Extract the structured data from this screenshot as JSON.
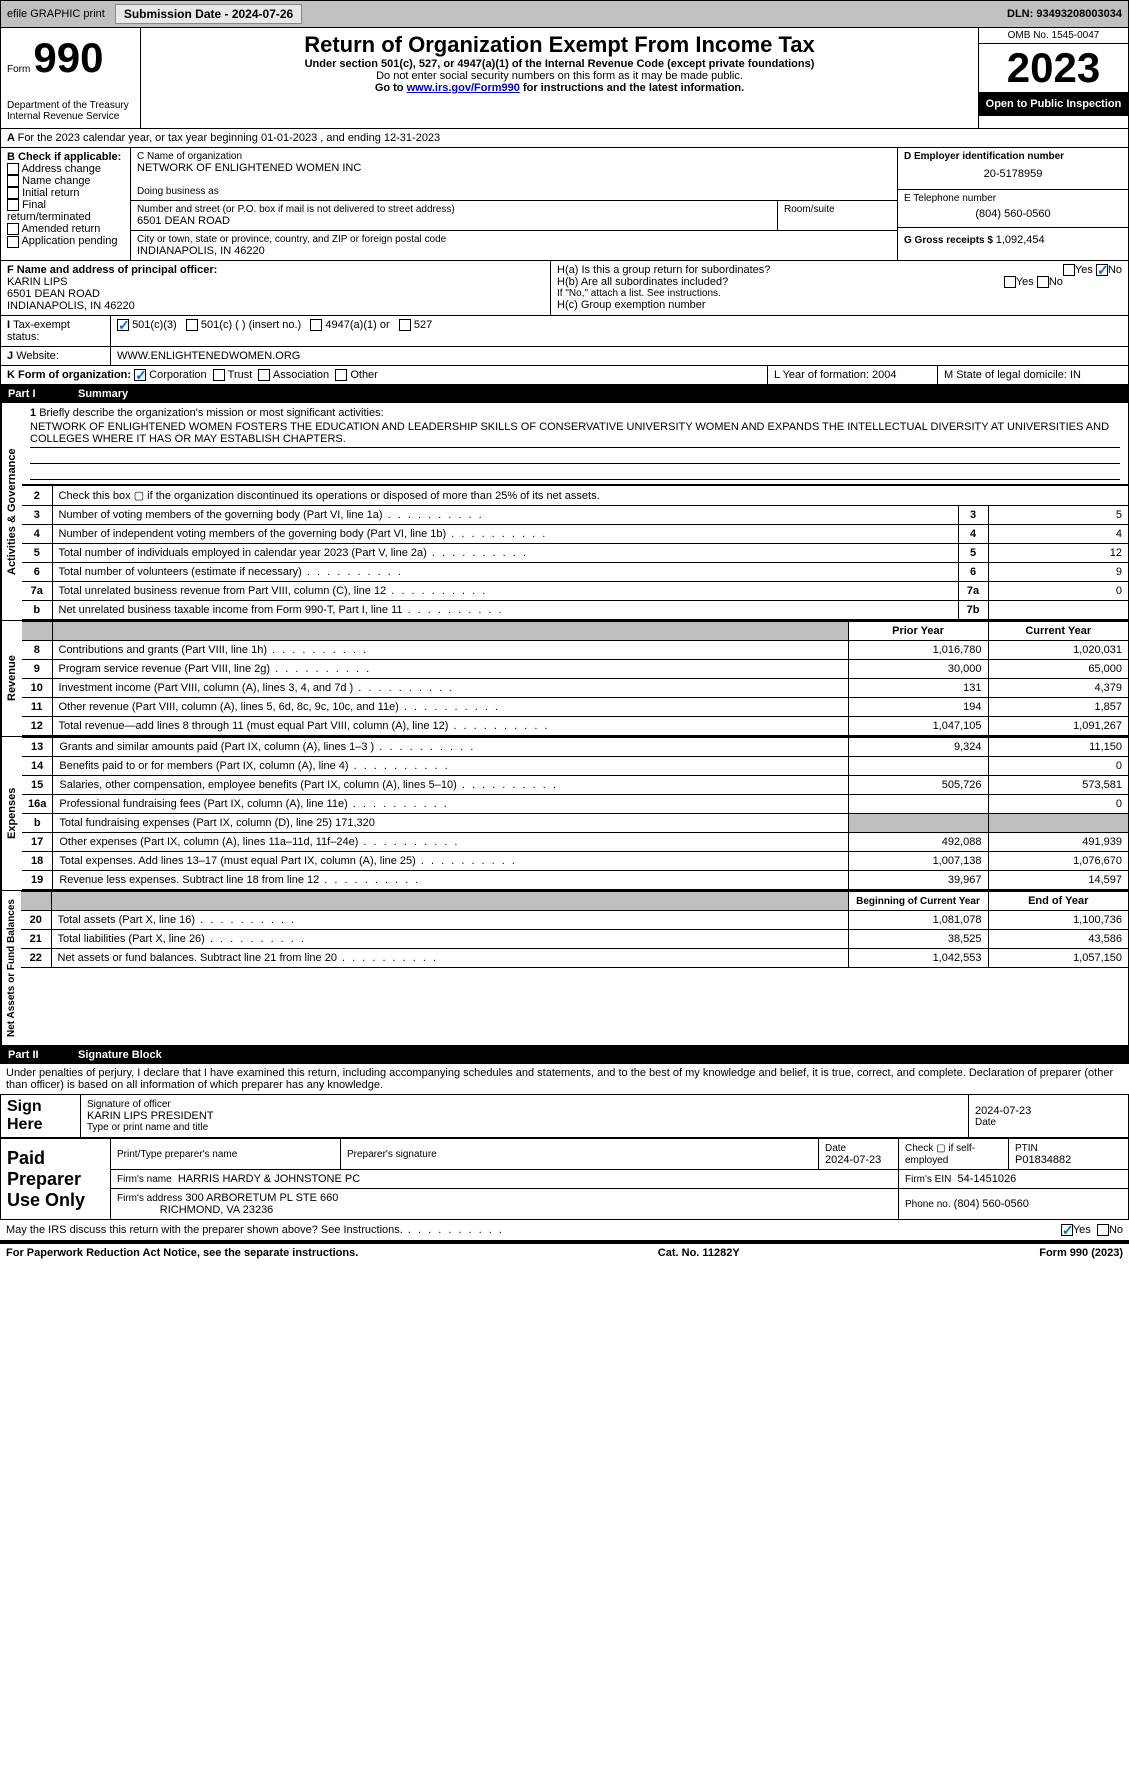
{
  "header": {
    "efile": "efile GRAPHIC print",
    "sub_label": "Submission Date - 2024-07-26",
    "dln": "DLN: 93493208003034"
  },
  "form_header": {
    "form_label": "Form",
    "form_num": "990",
    "dept": "Department of the Treasury",
    "irs": "Internal Revenue Service",
    "title": "Return of Organization Exempt From Income Tax",
    "subtitle": "Under section 501(c), 527, or 4947(a)(1) of the Internal Revenue Code (except private foundations)",
    "ssn_note": "Do not enter social security numbers on this form as it may be made public.",
    "goto": "Go to ",
    "goto_link": "www.irs.gov/Form990",
    "goto_suffix": " for instructions and the latest information.",
    "omb": "OMB No. 1545-0047",
    "year": "2023",
    "otpi": "Open to Public Inspection"
  },
  "line_a": "For the 2023 calendar year, or tax year beginning 01-01-2023   , and ending 12-31-2023",
  "box_b": {
    "label": "B Check if applicable:",
    "items": [
      "Address change",
      "Name change",
      "Initial return",
      "Final return/terminated",
      "Amended return",
      "Application pending"
    ]
  },
  "box_c": {
    "name_label": "C Name of organization",
    "name": "NETWORK OF ENLIGHTENED WOMEN INC",
    "dba_label": "Doing business as",
    "street_label": "Number and street (or P.O. box if mail is not delivered to street address)",
    "street": "6501 DEAN ROAD",
    "room_label": "Room/suite",
    "city_label": "City or town, state or province, country, and ZIP or foreign postal code",
    "city": "INDIANAPOLIS, IN  46220"
  },
  "box_d": {
    "label": "D Employer identification number",
    "value": "20-5178959"
  },
  "box_e": {
    "label": "E Telephone number",
    "value": "(804) 560-0560"
  },
  "box_g": {
    "label": "G Gross receipts $ ",
    "value": "1,092,454"
  },
  "box_f": {
    "label": "F  Name and address of principal officer:",
    "name": "KARIN LIPS",
    "addr1": "6501 DEAN ROAD",
    "addr2": "INDIANAPOLIS, IN  46220"
  },
  "box_h": {
    "a": "H(a)  Is this a group return for subordinates?",
    "b": "H(b)  Are all subordinates included?",
    "b_note": "If \"No,\" attach a list. See instructions.",
    "c": "H(c)  Group exemption number",
    "yes": "Yes",
    "no": "No"
  },
  "line_i": {
    "label": "Tax-exempt status:",
    "c3": "501(c)(3)",
    "cins": "501(c) (  ) (insert no.)",
    "a1": "4947(a)(1) or",
    "s527": "527"
  },
  "line_j": {
    "label": "Website:",
    "value": "WWW.ENLIGHTENEDWOMEN.ORG"
  },
  "line_k": {
    "label": "K Form of organization:",
    "corp": "Corporation",
    "trust": "Trust",
    "assoc": "Association",
    "other": "Other"
  },
  "line_l": {
    "label": "L Year of formation: ",
    "value": "2004"
  },
  "line_m": {
    "label": "M State of legal domicile: ",
    "value": "IN"
  },
  "part1": {
    "label": "Part I",
    "title": "Summary"
  },
  "mission": {
    "prompt": "Briefly describe the organization's mission or most significant activities:",
    "text": "NETWORK OF ENLIGHTENED WOMEN FOSTERS THE EDUCATION AND LEADERSHIP SKILLS OF CONSERVATIVE UNIVERSITY WOMEN AND EXPANDS THE INTELLECTUAL DIVERSITY AT UNIVERSITIES AND COLLEGES WHERE IT HAS OR MAY ESTABLISH CHAPTERS."
  },
  "gov_section_label": "Activities & Governance",
  "gov_rows": [
    {
      "n": "2",
      "text": "Check this box  ▢  if the organization discontinued its operations or disposed of more than 25% of its net assets."
    },
    {
      "n": "3",
      "text": "Number of voting members of the governing body (Part VI, line 1a)",
      "rn": "3",
      "val": "5"
    },
    {
      "n": "4",
      "text": "Number of independent voting members of the governing body (Part VI, line 1b)",
      "rn": "4",
      "val": "4"
    },
    {
      "n": "5",
      "text": "Total number of individuals employed in calendar year 2023 (Part V, line 2a)",
      "rn": "5",
      "val": "12"
    },
    {
      "n": "6",
      "text": "Total number of volunteers (estimate if necessary)",
      "rn": "6",
      "val": "9"
    },
    {
      "n": "7a",
      "text": "Total unrelated business revenue from Part VIII, column (C), line 12",
      "rn": "7a",
      "val": "0"
    },
    {
      "n": "b",
      "text": "Net unrelated business taxable income from Form 990-T, Part I, line 11",
      "rn": "7b",
      "val": ""
    }
  ],
  "rev_label": "Revenue",
  "rev_header": {
    "py": "Prior Year",
    "cy": "Current Year"
  },
  "rev_rows": [
    {
      "n": "8",
      "text": "Contributions and grants (Part VIII, line 1h)",
      "py": "1,016,780",
      "cy": "1,020,031"
    },
    {
      "n": "9",
      "text": "Program service revenue (Part VIII, line 2g)",
      "py": "30,000",
      "cy": "65,000"
    },
    {
      "n": "10",
      "text": "Investment income (Part VIII, column (A), lines 3, 4, and 7d )",
      "py": "131",
      "cy": "4,379"
    },
    {
      "n": "11",
      "text": "Other revenue (Part VIII, column (A), lines 5, 6d, 8c, 9c, 10c, and 11e)",
      "py": "194",
      "cy": "1,857"
    },
    {
      "n": "12",
      "text": "Total revenue—add lines 8 through 11 (must equal Part VIII, column (A), line 12)",
      "py": "1,047,105",
      "cy": "1,091,267"
    }
  ],
  "exp_label": "Expenses",
  "exp_rows": [
    {
      "n": "13",
      "text": "Grants and similar amounts paid (Part IX, column (A), lines 1–3 )",
      "py": "9,324",
      "cy": "11,150"
    },
    {
      "n": "14",
      "text": "Benefits paid to or for members (Part IX, column (A), line 4)",
      "py": " ",
      "cy": "0"
    },
    {
      "n": "15",
      "text": "Salaries, other compensation, employee benefits (Part IX, column (A), lines 5–10)",
      "py": "505,726",
      "cy": "573,581"
    },
    {
      "n": "16a",
      "text": "Professional fundraising fees (Part IX, column (A), line 11e)",
      "py": " ",
      "cy": "0"
    },
    {
      "n": "b",
      "text": "Total fundraising expenses (Part IX, column (D), line 25) 171,320",
      "shaded": true
    },
    {
      "n": "17",
      "text": "Other expenses (Part IX, column (A), lines 11a–11d, 11f–24e)",
      "py": "492,088",
      "cy": "491,939"
    },
    {
      "n": "18",
      "text": "Total expenses. Add lines 13–17 (must equal Part IX, column (A), line 25)",
      "py": "1,007,138",
      "cy": "1,076,670"
    },
    {
      "n": "19",
      "text": "Revenue less expenses. Subtract line 18 from line 12",
      "py": "39,967",
      "cy": "14,597"
    }
  ],
  "na_label": "Net Assets or Fund Balances",
  "na_header": {
    "py": "Beginning of Current Year",
    "cy": "End of Year"
  },
  "na_rows": [
    {
      "n": "20",
      "text": "Total assets (Part X, line 16)",
      "py": "1,081,078",
      "cy": "1,100,736"
    },
    {
      "n": "21",
      "text": "Total liabilities (Part X, line 26)",
      "py": "38,525",
      "cy": "43,586"
    },
    {
      "n": "22",
      "text": "Net assets or fund balances. Subtract line 21 from line 20",
      "py": "1,042,553",
      "cy": "1,057,150"
    }
  ],
  "part2": {
    "label": "Part II",
    "title": "Signature Block"
  },
  "penalties": "Under penalties of perjury, I declare that I have examined this return, including accompanying schedules and statements, and to the best of my knowledge and belief, it is true, correct, and complete. Declaration of preparer (other than officer) is based on all information of which preparer has any knowledge.",
  "sign": {
    "here": "Sign Here",
    "sigoff": "Signature of officer",
    "date_lbl": "Date",
    "date": "2024-07-23",
    "name_title": "KARIN LIPS  PRESIDENT",
    "type_lbl": "Type or print name and title"
  },
  "paid": {
    "label": "Paid Preparer Use Only",
    "pname_lbl": "Print/Type preparer's name",
    "psig_lbl": "Preparer's signature",
    "pdate_lbl": "Date",
    "pdate": "2024-07-23",
    "check_lbl": "Check ▢ if self-employed",
    "ptin_lbl": "PTIN",
    "ptin": "P01834882",
    "firm_name_lbl": "Firm's name",
    "firm_name": "HARRIS HARDY & JOHNSTONE PC",
    "firm_ein_lbl": "Firm's EIN",
    "firm_ein": "54-1451026",
    "firm_addr_lbl": "Firm's address",
    "firm_addr": "300 ARBORETUM PL STE 660",
    "firm_city": "RICHMOND, VA  23236",
    "phone_lbl": "Phone no.",
    "phone": "(804) 560-0560"
  },
  "discuss": {
    "text": "May the IRS discuss this return with the preparer shown above? See Instructions.",
    "yes": "Yes",
    "no": "No"
  },
  "footer": {
    "pra": "For Paperwork Reduction Act Notice, see the separate instructions.",
    "cat": "Cat. No. 11282Y",
    "form": "Form 990 (2023)"
  }
}
